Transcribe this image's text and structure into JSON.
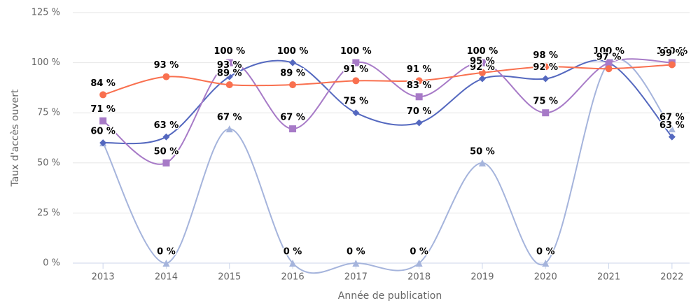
{
  "chart_data": {
    "type": "line",
    "smooth": true,
    "y_axis_label": "Taux d'accès ouvert",
    "x_axis_label": "Année de publication",
    "categories": [
      "2013",
      "2014",
      "2015",
      "2016",
      "2017",
      "2018",
      "2019",
      "2020",
      "2021",
      "2022"
    ],
    "ylim": [
      0,
      125
    ],
    "yticks": [
      {
        "value": 0,
        "label": "0 %"
      },
      {
        "value": 25,
        "label": "25 %"
      },
      {
        "value": 50,
        "label": "50 %"
      },
      {
        "value": 75,
        "label": "75 %"
      },
      {
        "value": 100,
        "label": "100 %"
      },
      {
        "value": 125,
        "label": "125 %"
      }
    ],
    "grid": true,
    "series": [
      {
        "color": "#a5b4dc",
        "marker": "triangle",
        "values": [
          60,
          0,
          67,
          0,
          0,
          0,
          50,
          0,
          100,
          67
        ],
        "value_labels": [
          "60 %",
          "0 %",
          "67 %",
          "0 %",
          "0 %",
          "0 %",
          "50 %",
          "0 %",
          "100 %",
          "67 %"
        ]
      },
      {
        "color": "#5468bf",
        "marker": "diamond",
        "values": [
          60,
          63,
          93,
          100,
          75,
          70,
          92,
          92,
          100,
          63
        ],
        "value_labels": [
          "60 %",
          "63 %",
          "93 %",
          "100 %",
          "75 %",
          "70 %",
          "92 %",
          "92 %",
          "100 %",
          "63 %"
        ]
      },
      {
        "color": "#a77ac7",
        "marker": "square",
        "values": [
          71,
          50,
          100,
          67,
          100,
          83,
          100,
          75,
          100,
          100
        ],
        "value_labels": [
          "71 %",
          "50 %",
          "100 %",
          "67 %",
          "100 %",
          "83 %",
          "100 %",
          "75 %",
          "100 %",
          "100 %"
        ]
      },
      {
        "color": "#f9704f",
        "marker": "circle",
        "values": [
          84,
          93,
          89,
          89,
          91,
          91,
          95,
          98,
          97,
          99
        ],
        "value_labels": [
          "84 %",
          "93 %",
          "89 %",
          "89 %",
          "91 %",
          "91 %",
          "95 %",
          "98 %",
          "97 %",
          "99 %"
        ]
      }
    ]
  }
}
